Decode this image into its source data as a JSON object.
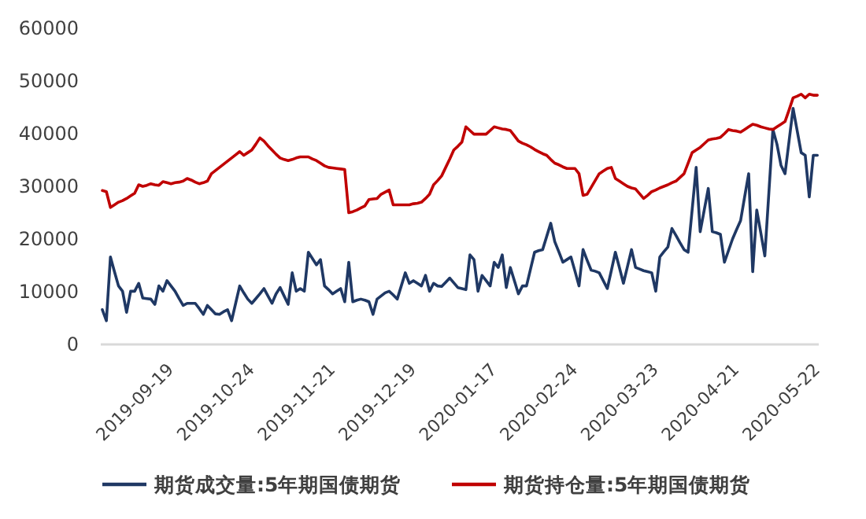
{
  "chart_data": {
    "type": "line",
    "categories": [
      null,
      null,
      null,
      null,
      null,
      null,
      null,
      null,
      null,
      null,
      null,
      null,
      null,
      null,
      null,
      null,
      null,
      "2019-09-19",
      null,
      null,
      null,
      null,
      null,
      null,
      null,
      null,
      null,
      null,
      null,
      null,
      null,
      null,
      null,
      null,
      null,
      null,
      null,
      "2019-10-24",
      null,
      null,
      null,
      null,
      null,
      null,
      null,
      null,
      null,
      null,
      null,
      null,
      null,
      null,
      null,
      null,
      null,
      null,
      null,
      "2019-11-21",
      null,
      null,
      null,
      null,
      null,
      null,
      null,
      null,
      null,
      null,
      null,
      null,
      null,
      null,
      null,
      null,
      null,
      null,
      null,
      "2019-12-19",
      null,
      null,
      null,
      null,
      null,
      null,
      null,
      null,
      null,
      null,
      null,
      null,
      null,
      null,
      null,
      null,
      null,
      null,
      null,
      "2020-01-17",
      null,
      null,
      null,
      null,
      null,
      null,
      null,
      null,
      null,
      null,
      null,
      null,
      null,
      null,
      null,
      null,
      null,
      null,
      null,
      "2020-02-24",
      null,
      null,
      null,
      null,
      null,
      null,
      null,
      null,
      null,
      null,
      null,
      null,
      null,
      null,
      null,
      null,
      null,
      null,
      null,
      "2020-03-23",
      null,
      null,
      null,
      null,
      null,
      null,
      null,
      null,
      null,
      null,
      null,
      null,
      null,
      null,
      null,
      null,
      null,
      null,
      null,
      "2020-04-21",
      null,
      null,
      null,
      null,
      null,
      null,
      null,
      null,
      null,
      null,
      null,
      null,
      null,
      null,
      null,
      null,
      null,
      null,
      null,
      "2020-05-22"
    ],
    "series": [
      {
        "name": "期货成交量:5年期国债期货",
        "color": "#1f3864",
        "values": [
          6600,
          4500,
          16600,
          13800,
          11100,
          10100,
          6100,
          10100,
          10100,
          11600,
          8800,
          8700,
          8600,
          7600,
          11100,
          10100,
          12100,
          11100,
          10100,
          8700,
          7400,
          7800,
          7800,
          7800,
          6800,
          5700,
          7400,
          6600,
          5800,
          5700,
          6200,
          6600,
          4500,
          7800,
          11100,
          9800,
          8600,
          7800,
          8700,
          9600,
          10600,
          9200,
          7800,
          9600,
          10800,
          9200,
          7600,
          13600,
          10100,
          10600,
          10100,
          17500,
          16300,
          15100,
          16100,
          11100,
          10400,
          9600,
          10100,
          10600,
          8100,
          15600,
          8100,
          8400,
          8600,
          8400,
          8100,
          5700,
          8600,
          9200,
          9800,
          10100,
          9400,
          8600,
          11100,
          13600,
          11600,
          12100,
          11600,
          11100,
          13100,
          10100,
          11600,
          11100,
          11000,
          11800,
          12600,
          11700,
          10800,
          10600,
          10400,
          17000,
          16100,
          10100,
          13100,
          12100,
          11100,
          15600,
          14600,
          17000,
          10800,
          14600,
          12100,
          9600,
          11100,
          11100,
          14300,
          17500,
          17800,
          18000,
          20500,
          23000,
          19500,
          17600,
          15600,
          16100,
          16600,
          13900,
          11100,
          18000,
          16000,
          14100,
          13900,
          13600,
          12100,
          10600,
          14000,
          17500,
          14600,
          11600,
          14800,
          18000,
          14600,
          14300,
          14000,
          13800,
          13600,
          10100,
          16600,
          17600,
          18500,
          22000,
          20700,
          19300,
          18000,
          17500,
          25500,
          33600,
          21400,
          25500,
          29600,
          21400,
          21200,
          20900,
          15600,
          17800,
          20000,
          21800,
          23500,
          28000,
          32400,
          13800,
          25500,
          21200,
          16800,
          28800,
          40800,
          38000,
          34000,
          32400,
          38600,
          44800,
          40600,
          36400,
          35900,
          28000,
          35900,
          35900
        ]
      },
      {
        "name": "期货持仓量:5年期国债期货",
        "color": "#c00000",
        "values": [
          29200,
          29000,
          26000,
          26500,
          27000,
          27300,
          27700,
          28200,
          28700,
          30300,
          30000,
          30200,
          30500,
          30300,
          30200,
          30900,
          30700,
          30500,
          30700,
          30800,
          31000,
          31500,
          31200,
          30800,
          30500,
          30700,
          31000,
          32400,
          33000,
          33600,
          34200,
          34800,
          35400,
          36000,
          36600,
          35900,
          36400,
          36900,
          38000,
          39200,
          38600,
          37700,
          36900,
          36100,
          35400,
          35100,
          34900,
          35100,
          35400,
          35600,
          35600,
          35600,
          35200,
          34900,
          34400,
          33900,
          33600,
          33500,
          33400,
          33300,
          33200,
          25000,
          25200,
          25500,
          25900,
          26300,
          27500,
          27600,
          27700,
          28500,
          28900,
          29300,
          26500,
          26500,
          26500,
          26500,
          26500,
          26700,
          26800,
          27000,
          27700,
          28500,
          30300,
          31100,
          32000,
          33600,
          35200,
          36900,
          37600,
          38400,
          41300,
          40600,
          39900,
          39900,
          39900,
          39900,
          40600,
          41300,
          41100,
          40900,
          40800,
          40600,
          39600,
          38600,
          38200,
          37900,
          37500,
          37000,
          36600,
          36200,
          35900,
          35100,
          34400,
          34100,
          33700,
          33400,
          33400,
          33400,
          32400,
          28300,
          28500,
          29800,
          31100,
          32400,
          32900,
          33400,
          33600,
          31500,
          31000,
          30500,
          30000,
          29700,
          29500,
          28600,
          27700,
          28300,
          29000,
          29300,
          29700,
          30000,
          30300,
          30700,
          31000,
          31700,
          32400,
          34400,
          36400,
          36900,
          37400,
          38100,
          38800,
          39000,
          39100,
          39300,
          40000,
          40800,
          40600,
          40500,
          40300,
          40800,
          41300,
          41800,
          41600,
          41300,
          41100,
          40900,
          40800,
          41300,
          41800,
          42300,
          44500,
          46800,
          47100,
          47500,
          46800,
          47500,
          47300,
          47300
        ]
      }
    ],
    "ylim": [
      0,
      60000
    ],
    "yticks": [
      0,
      10000,
      20000,
      30000,
      40000,
      50000,
      60000
    ],
    "grid": false,
    "legend": "bottom",
    "marker": "none",
    "line_style": "solid"
  }
}
